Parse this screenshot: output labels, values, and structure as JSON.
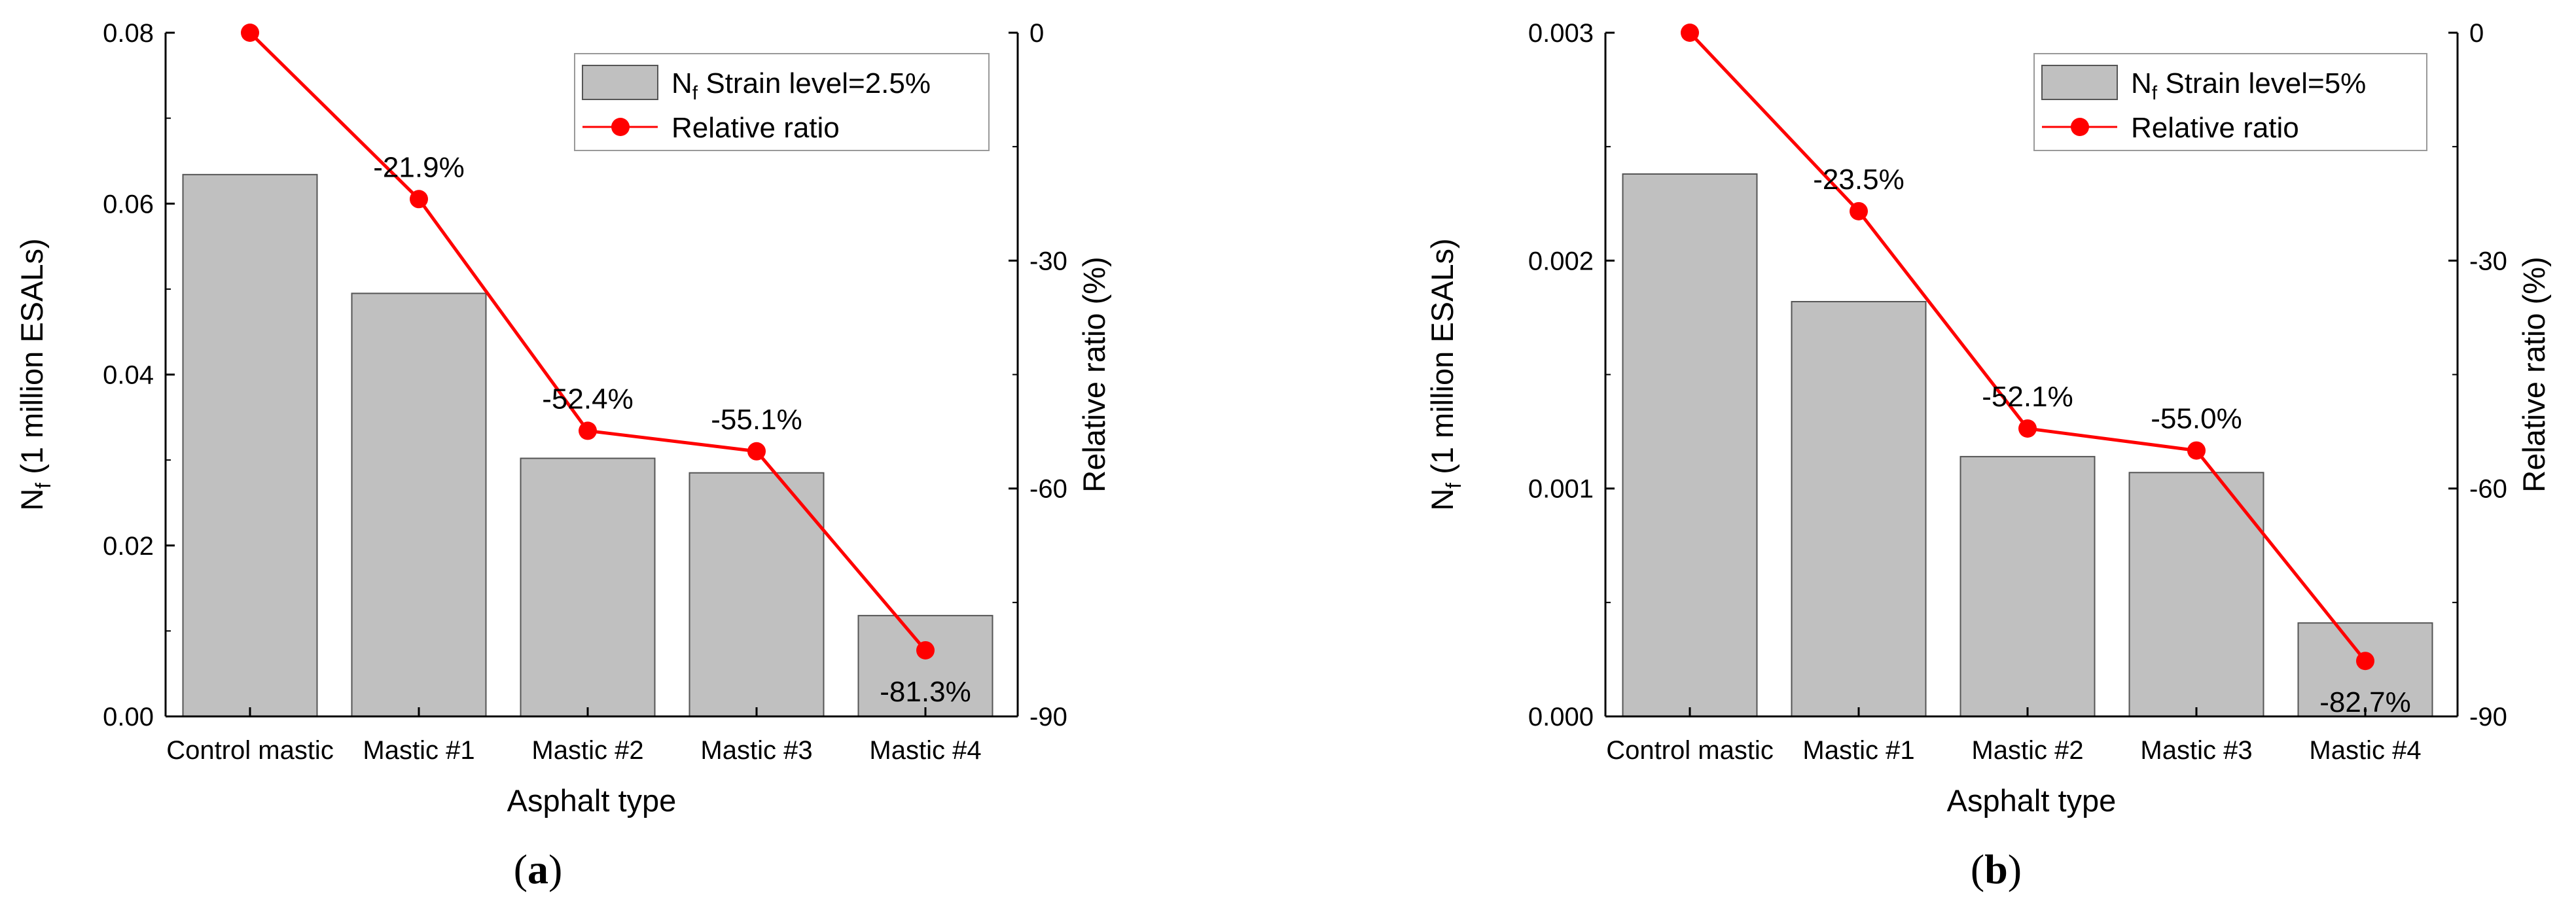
{
  "chart_data": [
    {
      "type": "bar",
      "panel_label": "a",
      "categories": [
        "Control mastic",
        "Mastic #1",
        "Mastic #2",
        "Mastic #3",
        "Mastic #4"
      ],
      "series": [
        {
          "name": "N_f Strain level=2.5%",
          "axis": "left",
          "type": "bar",
          "color": "#c0c0c0",
          "values": [
            0.0634,
            0.0495,
            0.0302,
            0.0285,
            0.0118
          ]
        },
        {
          "name": "Relative ratio",
          "axis": "right",
          "type": "line",
          "color": "#ff0000",
          "values": [
            0,
            -21.9,
            -52.4,
            -55.1,
            -81.3
          ],
          "data_labels": [
            "",
            "-21.9%",
            "-52.4%",
            "-55.1%",
            "-81.3%"
          ]
        }
      ],
      "xlabel": "Asphalt type",
      "ylabel": "N_f (1 million ESALs)",
      "ylabel_main": "N",
      "ylabel_sub": "f",
      "ylabel_rest": " (1 million ESALs)",
      "y2label": "Relative ratio (%)",
      "ylim": [
        0,
        0.08
      ],
      "yticks": [
        0.0,
        0.02,
        0.04,
        0.06,
        0.08
      ],
      "ytick_labels": [
        "0.00",
        "0.02",
        "0.04",
        "0.06",
        "0.08"
      ],
      "y2lim": [
        -90,
        0
      ],
      "y2ticks": [
        0,
        -30,
        -60,
        -90
      ],
      "y2tick_labels": [
        "0",
        "-30",
        "-60",
        "-90"
      ],
      "legend": {
        "position": "top-right",
        "bar_main": "N",
        "bar_sub": "f",
        "bar_rest": " Strain level=2.5%",
        "line_label": "Relative ratio"
      },
      "grid": false
    },
    {
      "type": "bar",
      "panel_label": "b",
      "categories": [
        "Control mastic",
        "Mastic #1",
        "Mastic #2",
        "Mastic #3",
        "Mastic #4"
      ],
      "series": [
        {
          "name": "N_f Strain level=5%",
          "axis": "left",
          "type": "bar",
          "color": "#c0c0c0",
          "values": [
            0.00238,
            0.00182,
            0.00114,
            0.00107,
            0.00041
          ]
        },
        {
          "name": "Relative ratio",
          "axis": "right",
          "type": "line",
          "color": "#ff0000",
          "values": [
            0,
            -23.5,
            -52.1,
            -55.0,
            -82.7
          ],
          "data_labels": [
            "",
            "-23.5%",
            "-52.1%",
            "-55.0%",
            "-82.7%"
          ]
        }
      ],
      "xlabel": "Asphalt type",
      "ylabel": "N_f (1 million ESALs)",
      "ylabel_main": "N",
      "ylabel_sub": "f",
      "ylabel_rest": " (1 million ESALs)",
      "y2label": "Relative ratio (%)",
      "ylim": [
        0,
        0.003
      ],
      "yticks": [
        0.0,
        0.001,
        0.002,
        0.003
      ],
      "ytick_labels": [
        "0.000",
        "0.001",
        "0.002",
        "0.003"
      ],
      "y2lim": [
        -90,
        0
      ],
      "y2ticks": [
        0,
        -30,
        -60,
        -90
      ],
      "y2tick_labels": [
        "0",
        "-30",
        "-60",
        "-90"
      ],
      "legend": {
        "position": "top-right",
        "bar_main": "N",
        "bar_sub": "f",
        "bar_rest": " Strain level=5%",
        "line_label": "Relative ratio"
      },
      "grid": false
    }
  ]
}
